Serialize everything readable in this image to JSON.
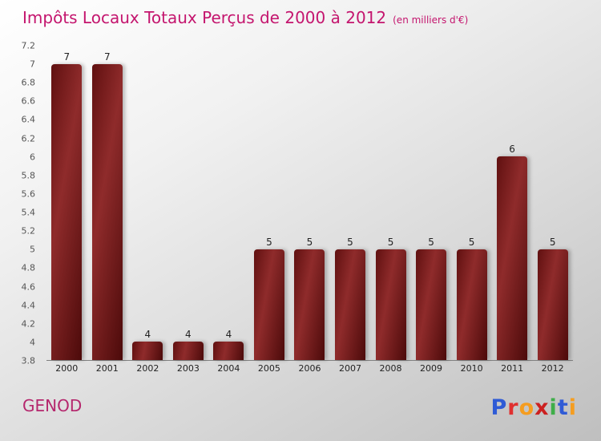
{
  "header": {
    "title": "Impôts Locaux Totaux Perçus de 2000 à 2012",
    "subtitle": "(en milliers d'€)"
  },
  "chart_data": {
    "type": "bar",
    "title": "Impôts Locaux Totaux Perçus de 2000 à 2012",
    "subtitle": "(en milliers d'€)",
    "categories": [
      "2000",
      "2001",
      "2002",
      "2003",
      "2004",
      "2005",
      "2006",
      "2007",
      "2008",
      "2009",
      "2010",
      "2011",
      "2012"
    ],
    "values": [
      7,
      7,
      4,
      4,
      4,
      5,
      5,
      5,
      5,
      5,
      5,
      6,
      5
    ],
    "xlabel": "",
    "ylabel": "",
    "ylim": [
      3.8,
      7.2
    ],
    "ytick_step": 0.2,
    "grid": false,
    "legend": false,
    "colors": {
      "bar_dark": "#4c0a0a",
      "bar_mid": "#8f2b2b",
      "bar_edge": "#601010",
      "accent": "#c4156e"
    }
  },
  "footer": {
    "commune": "GENOD",
    "brand_letters": [
      {
        "ch": "P",
        "color": "#2f5bd6"
      },
      {
        "ch": "r",
        "color": "#e03030"
      },
      {
        "ch": "o",
        "color": "#f59d20"
      },
      {
        "ch": "x",
        "color": "#cc2020"
      },
      {
        "ch": "i",
        "color": "#3fae49"
      },
      {
        "ch": "t",
        "color": "#2f5bd6"
      },
      {
        "ch": "i",
        "color": "#f59d20"
      }
    ]
  }
}
